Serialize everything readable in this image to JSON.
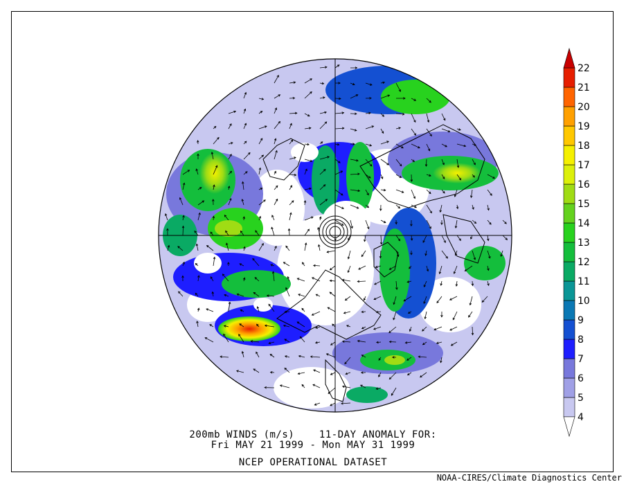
{
  "title": {
    "line1": "200mb WINDS (m/s)    11-DAY ANOMALY FOR:",
    "line2": "Fri MAY 21 1999 - Mon MAY 31 1999",
    "dataset": "NCEP OPERATIONAL DATASET"
  },
  "credit": "NOAA-CIRES/Climate Diagnostics Center",
  "colorbar": {
    "unit": "m/s",
    "levels": [
      {
        "label": "4",
        "color": "#ffffff"
      },
      {
        "label": "5",
        "color": "#c8c8f0"
      },
      {
        "label": "6",
        "color": "#a0a0e6"
      },
      {
        "label": "7",
        "color": "#7878dc"
      },
      {
        "label": "8",
        "color": "#1e1eff"
      },
      {
        "label": "9",
        "color": "#1450d2"
      },
      {
        "label": "10",
        "color": "#0a78b4"
      },
      {
        "label": "11",
        "color": "#0a9696"
      },
      {
        "label": "12",
        "color": "#0aaa64"
      },
      {
        "label": "13",
        "color": "#14be3c"
      },
      {
        "label": "14",
        "color": "#28d21e"
      },
      {
        "label": "15",
        "color": "#64d21e"
      },
      {
        "label": "16",
        "color": "#a0dc14"
      },
      {
        "label": "17",
        "color": "#dcf00a"
      },
      {
        "label": "18",
        "color": "#f5f000"
      },
      {
        "label": "19",
        "color": "#ffc800"
      },
      {
        "label": "20",
        "color": "#ffa000"
      },
      {
        "label": "21",
        "color": "#ff6400"
      },
      {
        "label": "22",
        "color": "#e61e00"
      }
    ],
    "over_color": "#c80000"
  },
  "map": {
    "projection": "north polar stereographic",
    "hemisphere": "Northern Hemisphere",
    "background_color": "#ffffff",
    "coastline_color": "#000000"
  }
}
